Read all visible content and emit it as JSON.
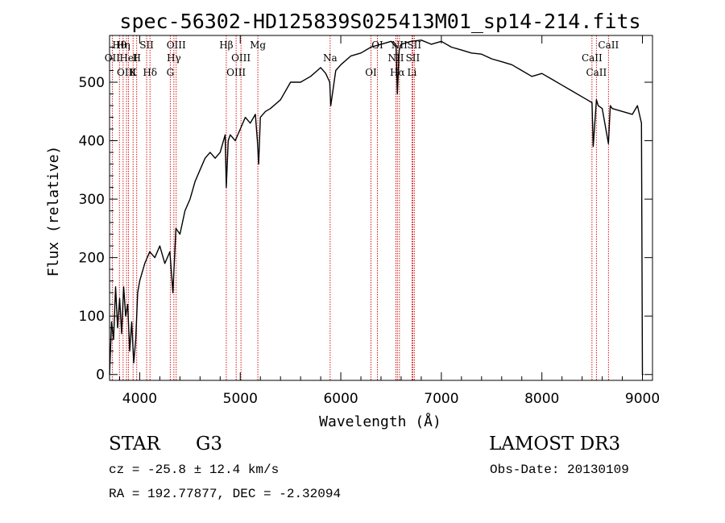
{
  "chart_data": {
    "type": "line",
    "title": "spec-56302-HD125839S025413M01_sp14-214.fits",
    "xlabel": "Wavelength (Å)",
    "ylabel": "Flux (relative)",
    "xlim": [
      3700,
      9100
    ],
    "ylim": [
      -10,
      580
    ],
    "xticks": [
      4000,
      5000,
      6000,
      7000,
      8000,
      9000
    ],
    "xtick_labels": [
      "4000",
      "5000",
      "6000",
      "7000",
      "8000",
      "9000"
    ],
    "yticks": [
      0,
      100,
      200,
      300,
      400,
      500
    ],
    "ytick_labels": [
      "0",
      "100",
      "200",
      "300",
      "400",
      "500"
    ],
    "series": [
      {
        "name": "flux",
        "color": "#000000",
        "x": [
          3700,
          3720,
          3740,
          3760,
          3780,
          3800,
          3820,
          3840,
          3860,
          3880,
          3900,
          3920,
          3940,
          3960,
          3980,
          4000,
          4050,
          4100,
          4150,
          4200,
          4250,
          4300,
          4330,
          4360,
          4400,
          4450,
          4500,
          4550,
          4600,
          4650,
          4700,
          4750,
          4800,
          4850,
          4861,
          4880,
          4900,
          4950,
          5000,
          5050,
          5100,
          5150,
          5170,
          5183,
          5200,
          5250,
          5300,
          5400,
          5500,
          5600,
          5700,
          5800,
          5850,
          5890,
          5900,
          5950,
          6000,
          6100,
          6200,
          6300,
          6400,
          6500,
          6550,
          6563,
          6580,
          6600,
          6700,
          6800,
          6900,
          7000,
          7100,
          7200,
          7300,
          7400,
          7500,
          7600,
          7700,
          7800,
          7900,
          8000,
          8100,
          8200,
          8300,
          8400,
          8450,
          8498,
          8510,
          8542,
          8560,
          8600,
          8662,
          8680,
          8700,
          8800,
          8900,
          8950,
          8990,
          9000,
          9010
        ],
        "y": [
          0,
          90,
          60,
          150,
          80,
          130,
          70,
          150,
          100,
          120,
          40,
          90,
          20,
          60,
          140,
          160,
          190,
          210,
          200,
          220,
          190,
          210,
          140,
          250,
          240,
          280,
          300,
          330,
          350,
          370,
          380,
          370,
          380,
          410,
          320,
          400,
          410,
          400,
          420,
          440,
          430,
          445,
          400,
          360,
          440,
          450,
          455,
          470,
          500,
          500,
          510,
          525,
          515,
          500,
          460,
          520,
          530,
          545,
          550,
          560,
          565,
          570,
          560,
          480,
          555,
          565,
          570,
          572,
          565,
          570,
          560,
          555,
          550,
          548,
          540,
          535,
          530,
          520,
          510,
          515,
          505,
          495,
          485,
          475,
          470,
          465,
          390,
          470,
          460,
          455,
          395,
          460,
          455,
          450,
          445,
          460,
          430,
          0,
          0
        ]
      }
    ],
    "spectral_lines": [
      {
        "label": "Hθ",
        "x": 3798
      },
      {
        "label": "OII",
        "x": 3727
      },
      {
        "label": "OIII",
        "x": 3869
      },
      {
        "label": "Hη",
        "x": 3835
      },
      {
        "label": "HeI",
        "x": 3889
      },
      {
        "label": "K",
        "x": 3934
      },
      {
        "label": "SII",
        "x": 4069
      },
      {
        "label": "H",
        "x": 3970
      },
      {
        "label": "Hδ",
        "x": 4102
      },
      {
        "label": "OIII",
        "x": 4363
      },
      {
        "label": "Hγ",
        "x": 4340
      },
      {
        "label": "G",
        "x": 4304
      },
      {
        "label": "Hβ",
        "x": 4861
      },
      {
        "label": "OIII",
        "x": 5007
      },
      {
        "label": "OIII",
        "x": 4959
      },
      {
        "label": "Mg",
        "x": 5175
      },
      {
        "label": "Na",
        "x": 5894
      },
      {
        "label": "OI",
        "x": 6300
      },
      {
        "label": "OI",
        "x": 6364
      },
      {
        "label": "NII",
        "x": 6548
      },
      {
        "label": "Hα",
        "x": 6563
      },
      {
        "label": "NII",
        "x": 6583
      },
      {
        "label": "SII",
        "x": 6716
      },
      {
        "label": "Li",
        "x": 6708
      },
      {
        "label": "SII",
        "x": 6731
      },
      {
        "label": "CaII",
        "x": 8498
      },
      {
        "label": "CaII",
        "x": 8542
      },
      {
        "label": "CaII",
        "x": 8662
      }
    ]
  },
  "info": {
    "object_class": "STAR",
    "subclass": "G3",
    "survey": "LAMOST DR3",
    "redshift_text": "cz = -25.8 ± 12.4 km/s",
    "obs_date_text": "Obs-Date: 20130109",
    "coords_text": "RA = 192.77877, DEC =  -2.32094"
  },
  "colors": {
    "line": "#000000",
    "marker_lines": "#cc0000",
    "background": "#ffffff"
  }
}
